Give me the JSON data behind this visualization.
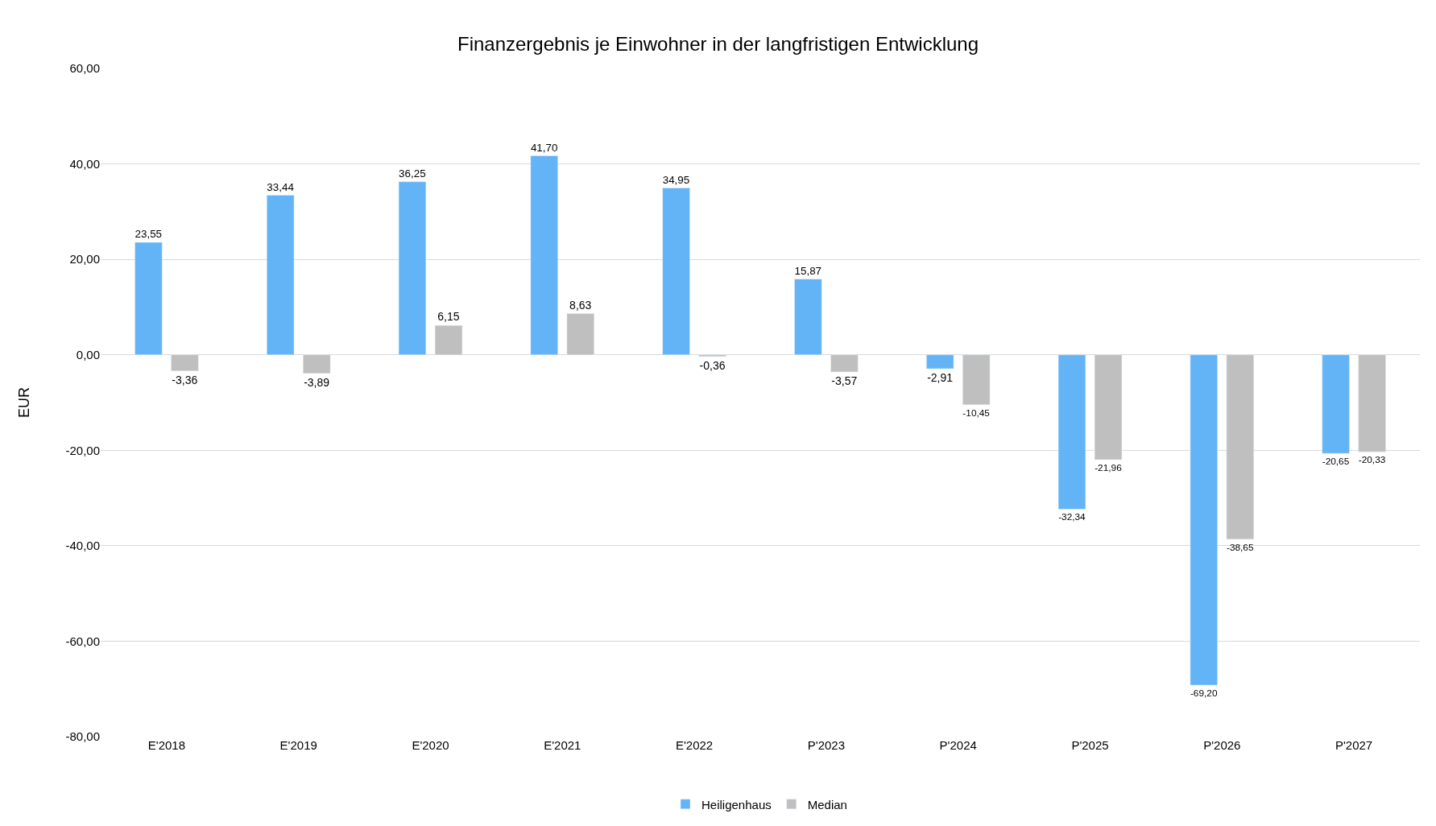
{
  "chart_data": {
    "type": "bar",
    "title": "Finanzergebnis je Einwohner in der langfristigen Entwicklung",
    "ylabel": "EUR",
    "categories": [
      "E'2018",
      "E'2019",
      "E'2020",
      "E'2021",
      "E'2022",
      "P'2023",
      "P'2024",
      "P'2025",
      "P'2026",
      "P'2027"
    ],
    "series": [
      {
        "name": "Heiligenhaus",
        "color": "#63b4f6",
        "values": [
          23.55,
          33.44,
          36.25,
          41.7,
          34.95,
          15.87,
          -2.91,
          -32.34,
          -69.2,
          -20.65
        ],
        "value_labels": [
          "23,55",
          "33,44",
          "36,25",
          "41,70",
          "34,95",
          "15,87",
          "-2,91",
          "-32,34",
          "-69,20",
          "-20,65"
        ]
      },
      {
        "name": "Median",
        "color": "#bfbfbf",
        "values": [
          -3.36,
          -3.89,
          6.15,
          8.63,
          -0.36,
          -3.57,
          -10.45,
          -21.96,
          -38.65,
          -20.33
        ],
        "value_labels": [
          "-3,36",
          "-3,89",
          "6,15",
          "8,63",
          "-0,36",
          "-3,57",
          "-10,45",
          "-21,96",
          "-38,65",
          "-20,33"
        ]
      }
    ],
    "ylim": [
      -80,
      60
    ],
    "yticks": [
      {
        "value": -80,
        "label": "-80,00"
      },
      {
        "value": -60,
        "label": "-60,00"
      },
      {
        "value": -40,
        "label": "-40,00"
      },
      {
        "value": -20,
        "label": "-20,00"
      },
      {
        "value": 0,
        "label": "0,00"
      },
      {
        "value": 20,
        "label": "20,00"
      },
      {
        "value": 40,
        "label": "40,00"
      },
      {
        "value": 60,
        "label": "60,00"
      }
    ],
    "grid": "y",
    "legend": "bottom"
  }
}
